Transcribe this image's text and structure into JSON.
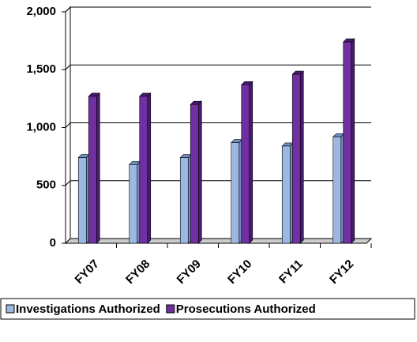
{
  "chart_data": {
    "type": "bar",
    "categories": [
      "FY07",
      "FY08",
      "FY09",
      "FY10",
      "FY11",
      "FY12"
    ],
    "series": [
      {
        "name": "Investigations Authorized",
        "color": "#9db8e0",
        "values": [
          740,
          680,
          740,
          870,
          840,
          920
        ]
      },
      {
        "name": "Prosecutions Authorized",
        "color": "#7030a0",
        "values": [
          1270,
          1270,
          1200,
          1370,
          1460,
          1740
        ]
      }
    ],
    "ylim": [
      0,
      2000
    ],
    "yticks": [
      0,
      500,
      {
        "value": 1000,
        "label": "1,000"
      },
      {
        "value": 1500,
        "label": "1,500"
      },
      {
        "value": 2000,
        "label": "2,000"
      }
    ],
    "grid": true,
    "legend": "bottom"
  }
}
